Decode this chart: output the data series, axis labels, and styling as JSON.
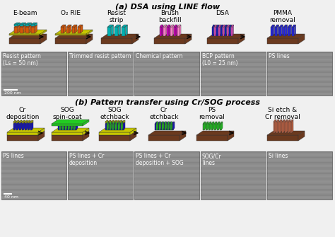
{
  "title_a": "(a) DSA using LINE flow",
  "title_b": "(b) Pattern transfer using Cr/SOG process",
  "section_a_labels": [
    "E-beam",
    "O₂ RIE",
    "Resist\nstrip",
    "Brush\nbackfill",
    "DSA",
    "PMMA\nremoval"
  ],
  "section_a_sem_labels": [
    "Resist pattern\n(Ls = 50 nm)",
    "Trimmed resist pattern",
    "Chemical pattern",
    "BCP pattern\n(L0 = 25 nm)",
    "PS lines"
  ],
  "section_b_labels": [
    "Cr\ndeposition",
    "SOG\nspin-coat",
    "SOG\netchback",
    "Cr\netchback",
    "PS\nremoval",
    "Si etch &\nCr removal"
  ],
  "section_b_sem_labels": [
    "PS lines",
    "PS lines + Cr\ndeposition",
    "PS lines + Cr\ndeposition + SOG",
    "SOG/Cr\nlines",
    "Si lines"
  ],
  "scale_bar_a": "200 nm",
  "scale_bar_b": "40 nm",
  "bg_color": "#f0f0f0",
  "colors_a": {
    "substrate": "#6b3a1f",
    "orange": "#d4580a",
    "cyan": "#00b0b0",
    "magenta": "#cc00bb",
    "pink": "#ff88cc",
    "ps_blue": "#1111cc",
    "pmma_pink": "#ee44cc",
    "yellow": "#c8c800",
    "blue_dark": "#2222dd"
  },
  "colors_b": {
    "substrate": "#6b3a1f",
    "ps_blue": "#1111cc",
    "cr_yellow": "#c8c800",
    "sog_green": "#22cc22",
    "si_salmon": "#cc6644"
  }
}
